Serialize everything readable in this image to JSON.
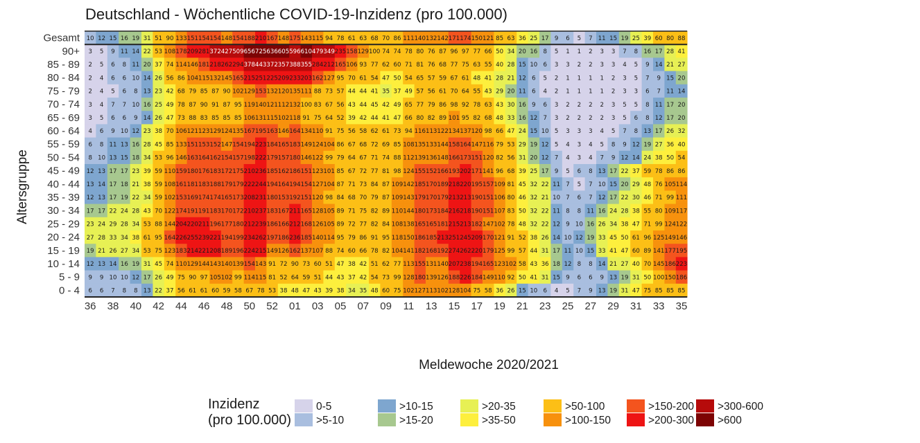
{
  "chart_data": {
    "type": "heatmap",
    "title": "Deutschland - Wöchentliche COVID-19-Inzidenz (pro 100.000)",
    "xlabel": "Meldewoche 2020/2021",
    "ylabel": "Altersgruppe",
    "weeks": [
      "36",
      "37",
      "38",
      "39",
      "40",
      "41",
      "42",
      "43",
      "44",
      "45",
      "46",
      "47",
      "48",
      "49",
      "50",
      "51",
      "52",
      "53",
      "01",
      "02",
      "03",
      "04",
      "05",
      "06",
      "07",
      "08",
      "09",
      "10",
      "11",
      "12",
      "13",
      "14",
      "15",
      "16",
      "17",
      "18",
      "19",
      "20",
      "21",
      "22",
      "23",
      "24",
      "25",
      "26",
      "27",
      "28",
      "29",
      "30",
      "31",
      "32",
      "33",
      "34",
      "35"
    ],
    "x_tick_labels": [
      "36",
      "38",
      "40",
      "42",
      "44",
      "46",
      "48",
      "50",
      "52",
      "01",
      "03",
      "05",
      "07",
      "09",
      "11",
      "13",
      "15",
      "17",
      "19",
      "21",
      "23",
      "25",
      "27",
      "29",
      "31",
      "33",
      "35"
    ],
    "rows": [
      {
        "label": "Gesamt",
        "values": [
          10,
          12,
          15,
          16,
          19,
          31,
          51,
          90,
          133,
          151,
          154,
          154,
          148,
          154,
          188,
          210,
          167,
          148,
          175,
          143,
          115,
          94,
          78,
          61,
          63,
          68,
          70,
          86,
          111,
          140,
          132,
          142,
          171,
          174,
          150,
          121,
          85,
          63,
          36,
          25,
          17,
          9,
          6,
          5,
          7,
          11,
          15,
          19,
          25,
          39,
          60,
          80,
          88
        ]
      },
      {
        "label": "90+",
        "values": [
          3,
          5,
          9,
          11,
          14,
          22,
          53,
          108,
          178,
          209,
          281,
          372,
          427,
          509,
          656,
          725,
          636,
          605,
          596,
          610,
          479,
          349,
          235,
          158,
          129,
          100,
          74,
          74,
          78,
          80,
          76,
          87,
          96,
          97,
          77,
          66,
          50,
          34,
          20,
          16,
          8,
          5,
          1,
          1,
          2,
          3,
          3,
          7,
          8,
          16,
          17,
          28,
          41
        ]
      },
      {
        "label": "85 - 89",
        "values": [
          2,
          5,
          6,
          8,
          11,
          20,
          37,
          74,
          114,
          146,
          181,
          218,
          262,
          294,
          378,
          443,
          372,
          357,
          388,
          355,
          284,
          212,
          165,
          106,
          93,
          77,
          62,
          60,
          71,
          81,
          76,
          68,
          77,
          75,
          63,
          55,
          40,
          28,
          15,
          10,
          6,
          3,
          3,
          2,
          2,
          3,
          3,
          4,
          5,
          9,
          14,
          21,
          27
        ]
      },
      {
        "label": "80 - 84",
        "values": [
          2,
          4,
          6,
          6,
          10,
          14,
          26,
          56,
          86,
          104,
          115,
          132,
          145,
          165,
          215,
          251,
          225,
          209,
          233,
          203,
          162,
          127,
          95,
          70,
          61,
          54,
          47,
          50,
          54,
          65,
          57,
          59,
          67,
          61,
          48,
          41,
          28,
          21,
          12,
          6,
          5,
          2,
          1,
          1,
          1,
          1,
          2,
          3,
          5,
          7,
          9,
          15,
          20
        ]
      },
      {
        "label": "75 - 79",
        "values": [
          2,
          4,
          5,
          6,
          8,
          13,
          23,
          42,
          68,
          79,
          85,
          87,
          90,
          102,
          129,
          153,
          132,
          120,
          135,
          111,
          88,
          73,
          57,
          44,
          44,
          41,
          35,
          37,
          49,
          57,
          56,
          61,
          70,
          64,
          55,
          43,
          29,
          20,
          11,
          6,
          4,
          2,
          1,
          1,
          1,
          1,
          2,
          3,
          3,
          6,
          7,
          11,
          14
        ]
      },
      {
        "label": "70 - 74",
        "values": [
          3,
          4,
          7,
          7,
          10,
          16,
          25,
          49,
          78,
          87,
          90,
          91,
          87,
          95,
          119,
          140,
          121,
          112,
          132,
          100,
          83,
          67,
          56,
          43,
          44,
          45,
          42,
          49,
          65,
          77,
          79,
          86,
          98,
          92,
          78,
          63,
          43,
          30,
          16,
          9,
          6,
          3,
          2,
          2,
          2,
          2,
          3,
          5,
          5,
          8,
          11,
          17,
          20
        ]
      },
      {
        "label": "65 - 69",
        "values": [
          3,
          5,
          6,
          6,
          9,
          14,
          26,
          47,
          73,
          88,
          83,
          85,
          85,
          85,
          106,
          131,
          115,
          102,
          118,
          91,
          75,
          64,
          52,
          39,
          42,
          44,
          41,
          47,
          66,
          80,
          82,
          89,
          101,
          95,
          82,
          68,
          48,
          33,
          16,
          12,
          7,
          3,
          2,
          2,
          2,
          2,
          3,
          5,
          6,
          8,
          12,
          17,
          20
        ]
      },
      {
        "label": "60 - 64",
        "values": [
          4,
          6,
          9,
          10,
          12,
          23,
          38,
          70,
          106,
          121,
          123,
          129,
          124,
          135,
          167,
          195,
          163,
          146,
          164,
          134,
          110,
          91,
          75,
          56,
          58,
          62,
          61,
          73,
          94,
          116,
          113,
          122,
          134,
          137,
          120,
          98,
          66,
          47,
          24,
          15,
          10,
          5,
          3,
          3,
          3,
          4,
          5,
          7,
          8,
          13,
          17,
          26,
          32
        ]
      },
      {
        "label": "55 - 59",
        "values": [
          6,
          8,
          11,
          13,
          16,
          28,
          45,
          85,
          133,
          151,
          153,
          152,
          147,
          154,
          194,
          223,
          184,
          165,
          183,
          149,
          124,
          104,
          86,
          67,
          68,
          72,
          69,
          85,
          108,
          135,
          133,
          144,
          158,
          164,
          147,
          116,
          79,
          53,
          29,
          19,
          12,
          5,
          4,
          3,
          4,
          5,
          8,
          9,
          12,
          19,
          27,
          36,
          40
        ]
      },
      {
        "label": "50 - 54",
        "values": [
          8,
          10,
          13,
          15,
          18,
          34,
          53,
          96,
          146,
          163,
          164,
          162,
          154,
          157,
          198,
          222,
          179,
          157,
          180,
          146,
          122,
          99,
          79,
          64,
          67,
          71,
          74,
          88,
          112,
          139,
          136,
          148,
          166,
          173,
          151,
          120,
          82,
          56,
          31,
          20,
          12,
          7,
          4,
          3,
          4,
          7,
          9,
          12,
          14,
          24,
          38,
          50,
          54
        ]
      },
      {
        "label": "45 - 49",
        "values": [
          12,
          13,
          17,
          17,
          23,
          39,
          59,
          110,
          159,
          180,
          176,
          183,
          172,
          175,
          210,
          236,
          185,
          162,
          186,
          151,
          123,
          101,
          85,
          67,
          72,
          77,
          81,
          98,
          124,
          155,
          152,
          166,
          193,
          202,
          171,
          141,
          96,
          68,
          39,
          25,
          17,
          9,
          5,
          6,
          8,
          13,
          17,
          22,
          37,
          59,
          78,
          86,
          86
        ]
      },
      {
        "label": "40 - 44",
        "values": [
          13,
          14,
          17,
          18,
          21,
          38,
          59,
          108,
          161,
          181,
          183,
          188,
          179,
          179,
          222,
          244,
          194,
          164,
          194,
          154,
          127,
          104,
          87,
          71,
          73,
          84,
          87,
          109,
          142,
          185,
          170,
          189,
          218,
          220,
          195,
          157,
          109,
          81,
          45,
          32,
          22,
          11,
          7,
          5,
          7,
          10,
          15,
          20,
          29,
          48,
          76,
          105,
          114
        ]
      },
      {
        "label": "35 - 39",
        "values": [
          12,
          13,
          17,
          19,
          22,
          34,
          59,
          102,
          153,
          169,
          174,
          174,
          165,
          173,
          208,
          231,
          180,
          153,
          192,
          151,
          120,
          98,
          84,
          68,
          70,
          79,
          87,
          109,
          143,
          179,
          170,
          179,
          213,
          213,
          190,
          151,
          106,
          80,
          46,
          32,
          21,
          10,
          7,
          6,
          7,
          12,
          17,
          22,
          30,
          46,
          71,
          99,
          111
        ]
      },
      {
        "label": "30 - 34",
        "values": [
          17,
          17,
          22,
          24,
          28,
          43,
          70,
          122,
          174,
          191,
          191,
          183,
          170,
          172,
          210,
          237,
          183,
          167,
          211,
          165,
          128,
          105,
          89,
          71,
          75,
          82,
          89,
          110,
          144,
          180,
          173,
          184,
          216,
          218,
          190,
          151,
          107,
          83,
          50,
          32,
          22,
          11,
          8,
          8,
          11,
          16,
          24,
          28,
          38,
          55,
          80,
          109,
          117
        ]
      },
      {
        "label": "25 - 29",
        "values": [
          23,
          24,
          29,
          28,
          34,
          53,
          88,
          144,
          204,
          220,
          211,
          196,
          177,
          180,
          212,
          239,
          186,
          166,
          212,
          168,
          126,
          105,
          89,
          72,
          77,
          82,
          84,
          108,
          138,
          165,
          165,
          181,
          215,
          213,
          182,
          147,
          102,
          78,
          48,
          32,
          22,
          12,
          9,
          10,
          16,
          26,
          34,
          38,
          47,
          71,
          99,
          124,
          122
        ]
      },
      {
        "label": "20 - 24",
        "values": [
          27,
          28,
          33,
          34,
          38,
          61,
          95,
          164,
          226,
          255,
          239,
          221,
          194,
          199,
          234,
          262,
          197,
          186,
          236,
          185,
          140,
          114,
          95,
          79,
          86,
          91,
          95,
          118,
          150,
          186,
          185,
          213,
          251,
          245,
          209,
          170,
          121,
          91,
          52,
          38,
          26,
          14,
          10,
          12,
          19,
          33,
          45,
          50,
          61,
          96,
          125,
          149,
          146
        ]
      },
      {
        "label": "15 - 19",
        "values": [
          19,
          21,
          26,
          27,
          34,
          53,
          75,
          123,
          183,
          214,
          221,
          208,
          189,
          196,
          224,
          215,
          149,
          126,
          162,
          137,
          107,
          88,
          74,
          60,
          66,
          78,
          82,
          104,
          141,
          182,
          168,
          192,
          274,
          262,
          220,
          179,
          125,
          99,
          57,
          44,
          31,
          17,
          11,
          10,
          15,
          33,
          41,
          47,
          60,
          89,
          141,
          177,
          195
        ]
      },
      {
        "label": "10 - 14",
        "values": [
          12,
          13,
          14,
          16,
          19,
          31,
          45,
          74,
          110,
          129,
          144,
          143,
          140,
          139,
          154,
          143,
          91,
          72,
          90,
          73,
          60,
          51,
          47,
          38,
          42,
          51,
          62,
          77,
          113,
          155,
          131,
          140,
          207,
          238,
          194,
          165,
          123,
          102,
          58,
          43,
          36,
          18,
          12,
          8,
          8,
          14,
          21,
          27,
          40,
          70,
          145,
          186,
          223
        ]
      },
      {
        "label": "5 - 9",
        "values": [
          9,
          9,
          10,
          10,
          12,
          17,
          26,
          49,
          75,
          90,
          97,
          105,
          102,
          99,
          114,
          115,
          81,
          52,
          64,
          59,
          51,
          44,
          43,
          37,
          42,
          54,
          73,
          99,
          128,
          180,
          139,
          126,
          188,
          226,
          184,
          149,
          110,
          92,
          50,
          41,
          31,
          15,
          9,
          6,
          6,
          9,
          13,
          19,
          31,
          50,
          100,
          150,
          186
        ]
      },
      {
        "label": "0 - 4",
        "values": [
          6,
          6,
          7,
          8,
          8,
          13,
          22,
          37,
          56,
          61,
          61,
          60,
          59,
          58,
          67,
          78,
          53,
          38,
          48,
          47,
          43,
          39,
          38,
          34,
          35,
          48,
          60,
          75,
          102,
          127,
          113,
          102,
          128,
          104,
          75,
          58,
          36,
          26,
          15,
          10,
          6,
          4,
          5,
          7,
          9,
          13,
          19,
          31,
          47,
          75,
          85,
          85,
          85
        ]
      }
    ],
    "legend": {
      "title": "Inzidenz",
      "subtitle": "(pro 100.000)",
      "bins": [
        {
          "label": "0-5",
          "max": 5,
          "color": "#d6d3ea"
        },
        {
          "label": ">5-10",
          "max": 10,
          "color": "#a9bedf"
        },
        {
          "label": ">10-15",
          "max": 15,
          "color": "#7ea6cf"
        },
        {
          "label": ">15-20",
          "max": 20,
          "color": "#a7c88f"
        },
        {
          "label": ">20-35",
          "max": 35,
          "color": "#e7f054"
        },
        {
          "label": ">35-50",
          "max": 50,
          "color": "#fdef3d"
        },
        {
          "label": ">50-100",
          "max": 100,
          "color": "#fcbf16"
        },
        {
          "label": ">100-150",
          "max": 150,
          "color": "#f7910d"
        },
        {
          "label": ">150-200",
          "max": 200,
          "color": "#f4541e"
        },
        {
          "label": ">200-300",
          "max": 300,
          "color": "#ee1414"
        },
        {
          "label": ">300-600",
          "max": 600,
          "color": "#b60b0b"
        },
        {
          "label": ">600",
          "max": 1000000,
          "color": "#7d0404"
        }
      ]
    },
    "grid": false,
    "legend_placement": "bottom"
  }
}
